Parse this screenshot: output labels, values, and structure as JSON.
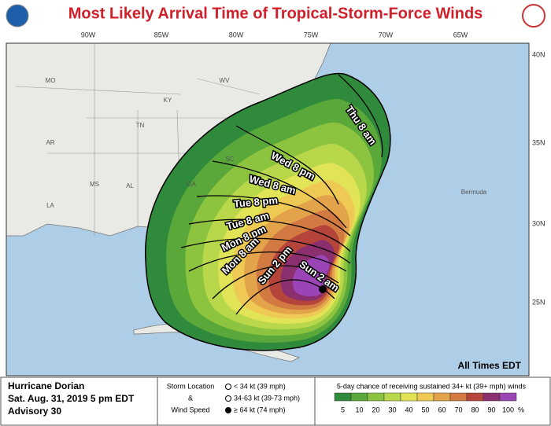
{
  "title": "Most Likely Arrival Time of Tropical-Storm-Force Winds",
  "longitude_labels": [
    "90W",
    "85W",
    "80W",
    "75W",
    "70W",
    "65W"
  ],
  "latitude_labels": [
    "40N",
    "35N",
    "30N",
    "25N"
  ],
  "place_labels": [
    "MO",
    "KY",
    "WV",
    "TN",
    "AR",
    "SC",
    "MS",
    "AL",
    "GA",
    "LA",
    "Bermuda"
  ],
  "arrival_times": [
    "Thu 8 am",
    "Wed 8 pm",
    "Wed 8 am",
    "Tue 8 pm",
    "Tue 8 am",
    "Mon 8 pm",
    "Mon 8 am",
    "Sun 2 pm",
    "Sun 2 am"
  ],
  "time_note": "All Times EDT",
  "footer": {
    "storm": "Hurricane Dorian",
    "issued": "Sat. Aug. 31, 2019  5 pm EDT",
    "advisory": "Advisory 30",
    "key_title": [
      "Storm Location",
      "&",
      "Wind Speed"
    ],
    "key_items": [
      "< 34 kt (39 mph)",
      "34-63 kt (39-73 mph)",
      "≥ 64 kt (74 mph)"
    ]
  },
  "legend": {
    "title": "5-day chance of receiving sustained 34+ kt (39+ mph) winds",
    "unit": "%",
    "levels": [
      5,
      10,
      20,
      30,
      40,
      50,
      60,
      70,
      80,
      90,
      100
    ],
    "colors": [
      "#2f8a3c",
      "#5aa83a",
      "#8cc43f",
      "#b8d74a",
      "#e2e457",
      "#eec953",
      "#e3a34b",
      "#d27a41",
      "#b5453a",
      "#8c2f6e",
      "#9a44b5"
    ]
  }
}
